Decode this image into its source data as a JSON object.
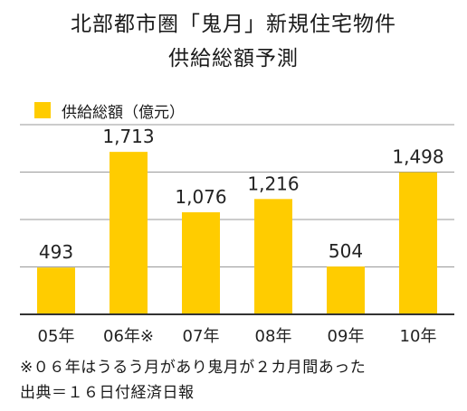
{
  "title_line1": "北部都市圏「鬼月」新規住宅物件",
  "title_line2": "供給総額予測",
  "colors": {
    "bar": "#FFCC00",
    "grid": "#9a9a9a",
    "axis": "#333333"
  },
  "footnote": "※０６年はうるう月があり鬼月が２カ月間あった",
  "source": "出典＝１６日付経済日報",
  "chart_data": {
    "type": "bar",
    "legend": "供給総額（億元）",
    "categories": [
      "05年",
      "06年※",
      "07年",
      "08年",
      "09年",
      "10年"
    ],
    "series": [
      {
        "name": "供給総額（億元）",
        "values": [
          493,
          1713,
          1076,
          1216,
          504,
          1498
        ],
        "labels": [
          "493",
          "1,713",
          "1,076",
          "1,216",
          "504",
          "1,498"
        ]
      }
    ],
    "ylim": [
      0,
      2000
    ],
    "grid": true,
    "legend_position": "top-left"
  }
}
